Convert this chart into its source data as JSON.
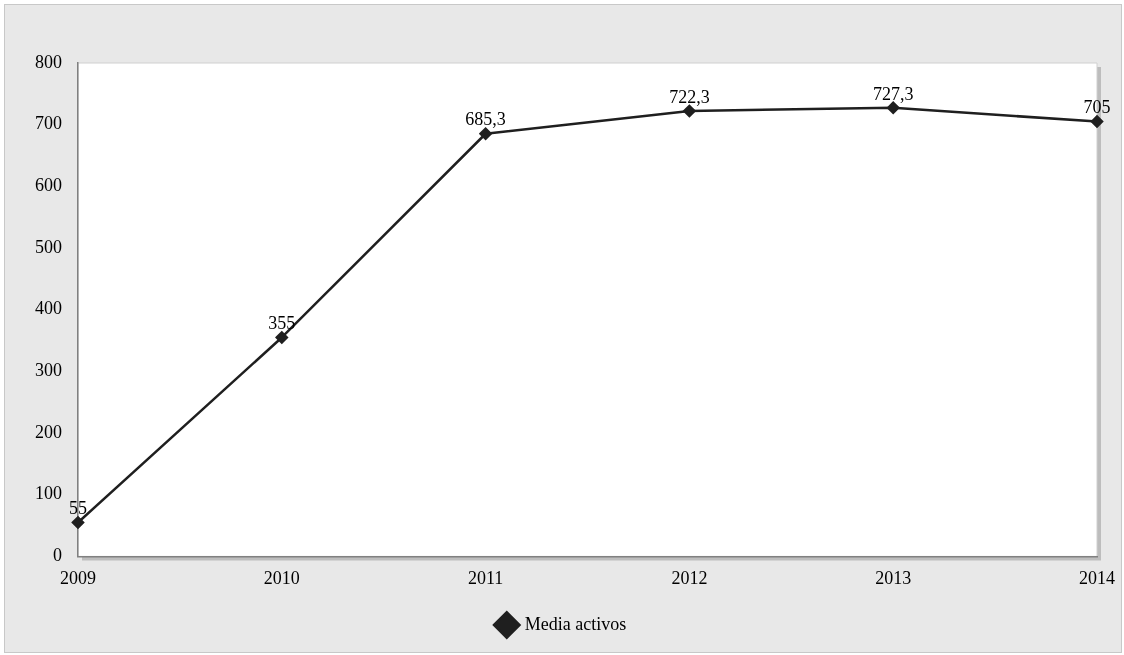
{
  "chart_data": {
    "type": "line",
    "categories": [
      "2009",
      "2010",
      "2011",
      "2012",
      "2013",
      "2014"
    ],
    "series": [
      {
        "name": "Media activos",
        "color": "#1f1f1f",
        "values": [
          55,
          355,
          685.3,
          722.3,
          727.3,
          705
        ],
        "value_labels": [
          "55",
          "355",
          "685,3",
          "722,3",
          "727,3",
          "705"
        ]
      }
    ],
    "ylim": [
      0,
      800
    ],
    "yticks": [
      0,
      100,
      200,
      300,
      400,
      500,
      600,
      700,
      800
    ],
    "grid": false,
    "legend": "bottom",
    "marker": "diamond",
    "line_style": "solid"
  }
}
